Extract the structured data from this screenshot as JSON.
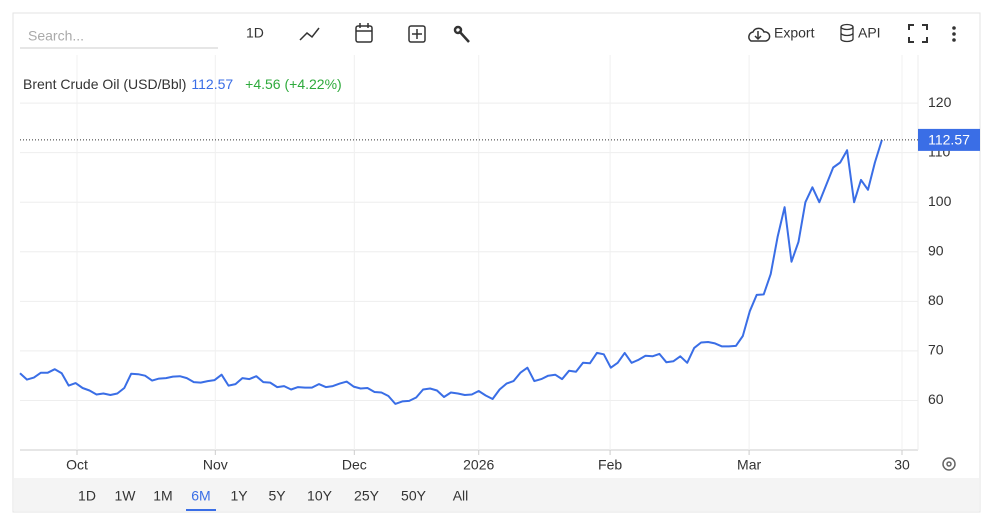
{
  "toolbar": {
    "search_placeholder": "Search...",
    "interval": "1D",
    "export": "Export",
    "api": "API"
  },
  "ranges": {
    "items": [
      "1D",
      "1W",
      "1M",
      "6M",
      "1Y",
      "5Y",
      "10Y",
      "25Y",
      "50Y",
      "All"
    ],
    "selected": "6M"
  },
  "chart_data": {
    "type": "line",
    "change": "+4.56 (+4.22%)",
    "series": [
      {
        "name": "Brent Crude Oil (USD/Bbl)",
        "color": "#3a6ee6",
        "values": [
          65.5,
          64.2,
          64.6,
          65.6,
          65.6,
          66.3,
          65.5,
          63.0,
          63.5,
          62.5,
          62.0,
          61.2,
          61.4,
          61.1,
          61.4,
          62.5,
          65.4,
          65.3,
          65.0,
          64.0,
          64.4,
          64.5,
          64.8,
          64.9,
          64.5,
          63.7,
          63.6,
          63.9,
          64.1,
          65.2,
          63.0,
          63.3,
          64.5,
          64.3,
          64.9,
          63.7,
          63.6,
          62.7,
          62.9,
          62.2,
          62.7,
          62.6,
          62.6,
          63.3,
          62.7,
          62.9,
          63.4,
          63.8,
          62.8,
          62.4,
          62.5,
          61.7,
          61.6,
          60.9,
          59.3,
          59.8,
          59.9,
          60.6,
          62.2,
          62.4,
          62.0,
          60.7,
          61.6,
          61.4,
          61.1,
          61.2,
          61.9,
          61.0,
          60.3,
          62.2,
          63.4,
          63.9,
          65.6,
          66.6,
          63.9,
          64.3,
          65.0,
          65.2,
          64.3,
          66.0,
          65.8,
          67.6,
          67.5,
          69.6,
          69.3,
          66.6,
          67.6,
          69.6,
          67.6,
          68.2,
          69.0,
          68.9,
          69.4,
          67.7,
          67.9,
          68.9,
          67.6,
          70.6,
          71.7,
          71.8,
          71.5,
          70.9,
          70.9,
          71.0,
          73.0,
          78.0,
          81.3,
          81.4,
          85.5,
          93.0,
          99.0,
          88.0,
          92.0,
          100.0,
          103.0,
          100.0,
          103.5,
          107.0,
          108.0,
          110.5,
          100.0,
          104.5,
          102.5,
          108.0,
          112.57
        ]
      }
    ],
    "xlim": [
      0,
      129.2
    ],
    "xticks": [
      {
        "value": 8.2,
        "label": "Oct"
      },
      {
        "value": 28.1,
        "label": "Nov"
      },
      {
        "value": 48.1,
        "label": "Dec"
      },
      {
        "value": 66.0,
        "label": "2026"
      },
      {
        "value": 84.9,
        "label": "Feb"
      },
      {
        "value": 104.9,
        "label": "Mar"
      },
      {
        "value": 126.9,
        "label": "30"
      }
    ],
    "ylim": [
      50,
      129.7
    ],
    "yticks": [
      60,
      70,
      80,
      90,
      100,
      110,
      120
    ],
    "grid": true
  }
}
